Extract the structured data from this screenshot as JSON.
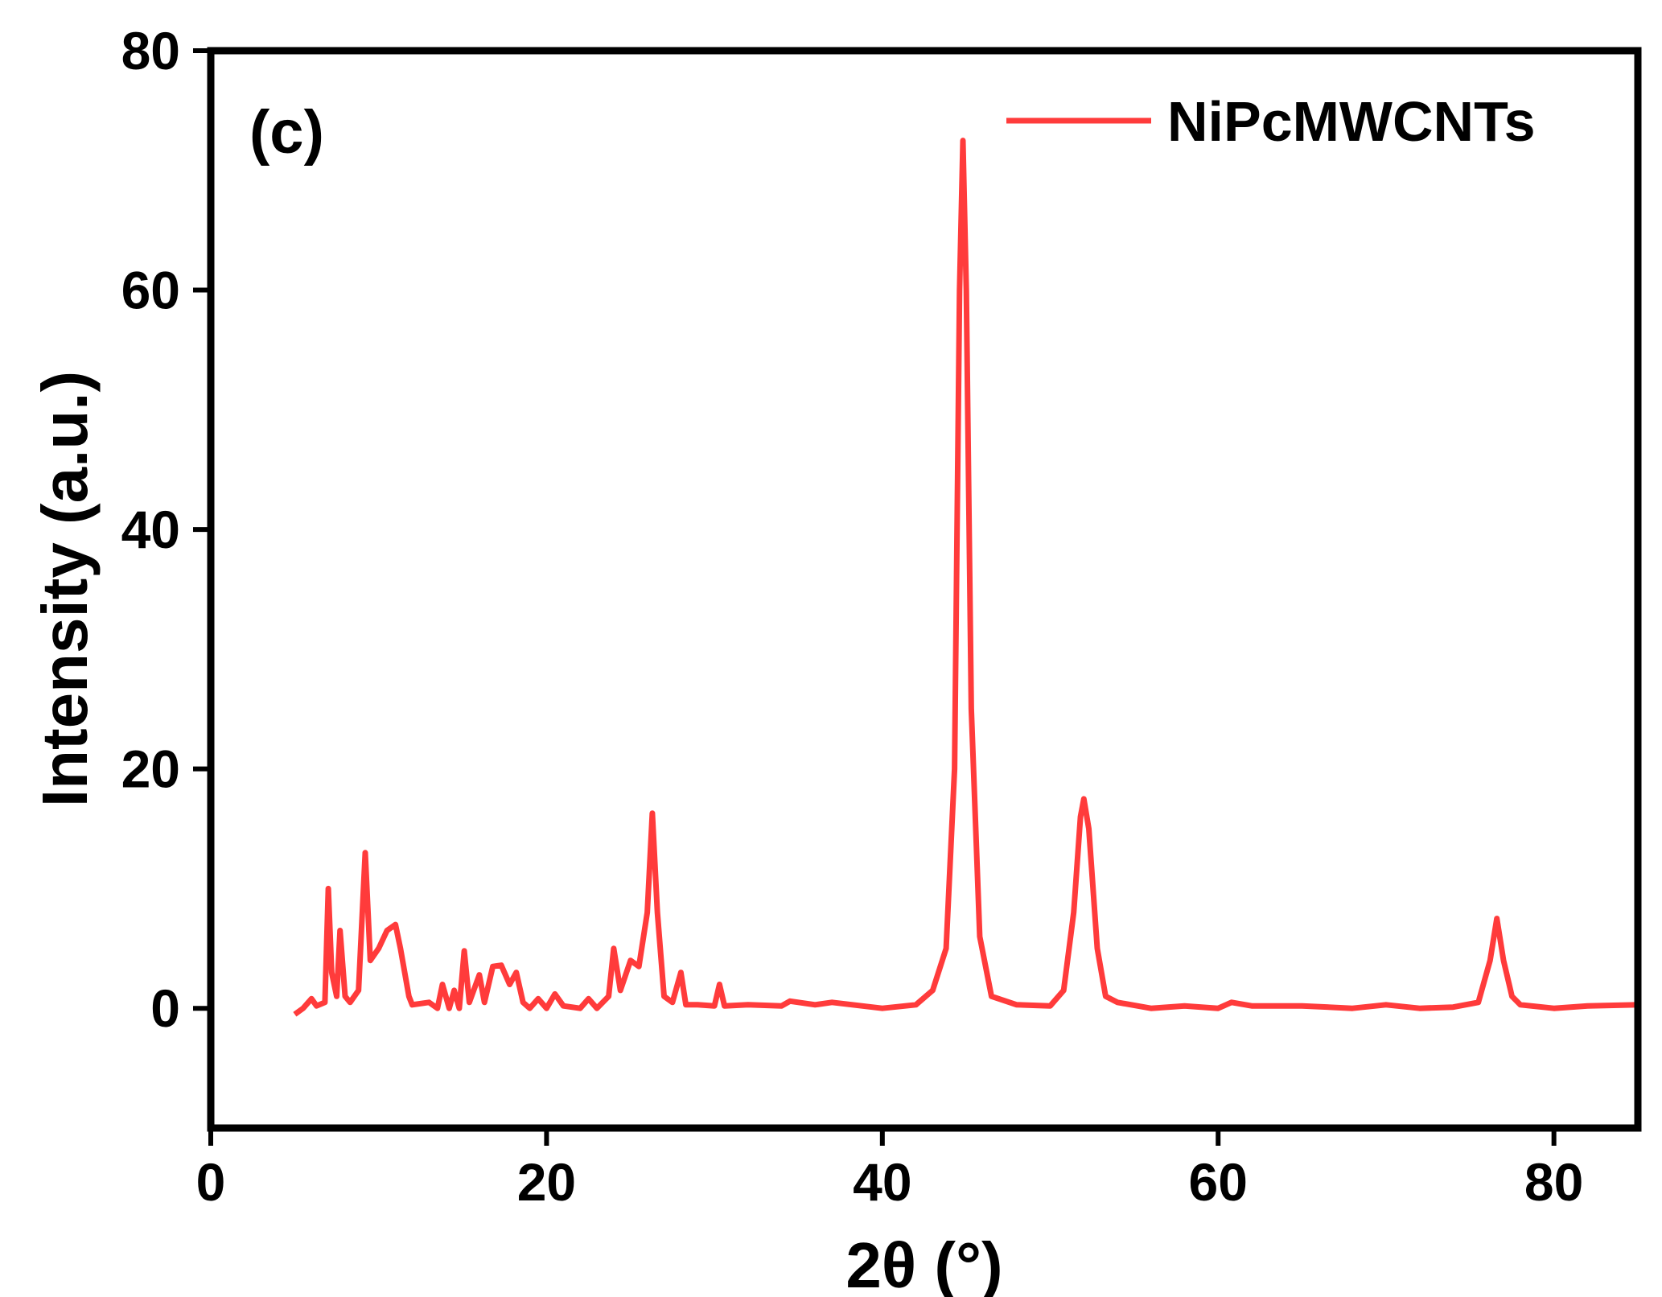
{
  "chart_data": {
    "type": "line",
    "annotation": "(c)",
    "xlabel": "2θ (°)",
    "ylabel": "Intensity (a.u.)",
    "legend": "top-right",
    "xlim": [
      0,
      85
    ],
    "xticks": [
      0,
      20,
      40,
      60,
      80
    ],
    "ylim": [
      -10,
      80
    ],
    "yticks": [
      0,
      20,
      40,
      60,
      80
    ],
    "x": [
      5,
      5.5,
      6,
      6.3,
      6.8,
      7.0,
      7.2,
      7.5,
      7.7,
      8,
      8.3,
      8.8,
      9.2,
      9.5,
      10,
      10.5,
      11,
      11.3,
      11.8,
      12,
      13,
      13.5,
      13.8,
      14.2,
      14.5,
      14.8,
      15.1,
      15.4,
      16,
      16.3,
      16.8,
      17.3,
      17.8,
      18.2,
      18.6,
      19,
      19.5,
      20,
      20.5,
      21,
      22,
      22.5,
      23,
      23.7,
      24,
      24.4,
      25,
      25.5,
      26,
      26.3,
      26.6,
      27,
      27.5,
      28,
      28.3,
      29,
      30,
      30.3,
      30.6,
      32,
      34,
      34.5,
      36,
      37,
      40,
      42,
      43,
      43.8,
      44.3,
      44.6,
      44.8,
      45,
      45.3,
      45.8,
      46.5,
      48,
      50,
      50.8,
      51.4,
      51.8,
      52,
      52.3,
      52.8,
      53.3,
      54,
      56,
      58,
      60,
      60.8,
      62,
      65,
      68,
      70,
      72,
      74,
      75.5,
      76.2,
      76.6,
      77,
      77.5,
      78,
      80,
      82,
      85
    ],
    "series": [
      {
        "name": "NiPcMWCNTs",
        "color": "#ff3b3b",
        "values": [
          -0.5,
          0,
          0.8,
          0.2,
          0.5,
          10,
          3,
          1,
          6.5,
          1,
          0.5,
          1.5,
          13,
          4,
          5,
          6.5,
          7,
          5,
          1,
          0.3,
          0.5,
          0,
          2,
          0,
          1.5,
          0,
          4.8,
          0.5,
          2.8,
          0.5,
          3.5,
          3.6,
          2,
          3,
          0.5,
          0,
          0.8,
          0,
          1.2,
          0.2,
          0,
          0.8,
          0,
          1,
          5,
          1.5,
          4,
          3.5,
          8,
          16.3,
          8,
          1,
          0.5,
          3,
          0.3,
          0.3,
          0.2,
          2,
          0.2,
          0.3,
          0.2,
          0.6,
          0.3,
          0.5,
          0,
          0.3,
          1.5,
          5,
          20,
          60,
          72.5,
          60,
          25,
          6,
          1,
          0.3,
          0.2,
          1.5,
          8,
          16,
          17.5,
          15,
          5,
          1,
          0.5,
          0,
          0.2,
          0,
          0.5,
          0.2,
          0.2,
          0,
          0.3,
          0,
          0.1,
          0.5,
          4,
          7.5,
          4,
          1,
          0.3,
          0,
          0.2,
          0.3
        ]
      }
    ]
  }
}
